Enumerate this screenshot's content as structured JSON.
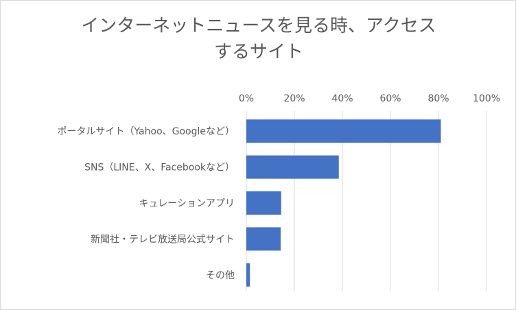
{
  "chart_data": {
    "type": "bar",
    "orientation": "horizontal",
    "title_line1": "インターネットニュースを見る時、アクセス",
    "title_line2": "するサイト",
    "categories": [
      "ポータルサイト（Yahoo、Googleなど）",
      "SNS（LINE、X、Facebookなど）",
      "キュレーションアプリ",
      "新聞社・テレビ放送局公式サイト",
      "その他"
    ],
    "values": [
      0.81,
      0.385,
      0.145,
      0.143,
      0.015
    ],
    "xlim": [
      0,
      1.0
    ],
    "x_ticks": [
      0,
      0.2,
      0.4,
      0.6,
      0.8,
      1.0
    ],
    "x_tick_labels": [
      "0%",
      "20%",
      "40%",
      "60%",
      "80%",
      "100%"
    ],
    "axis_position": "top",
    "grid": true,
    "legend": "none",
    "colors": {
      "bar": "#4472c4",
      "grid": "#d9d9d9",
      "text": "#595959"
    }
  }
}
